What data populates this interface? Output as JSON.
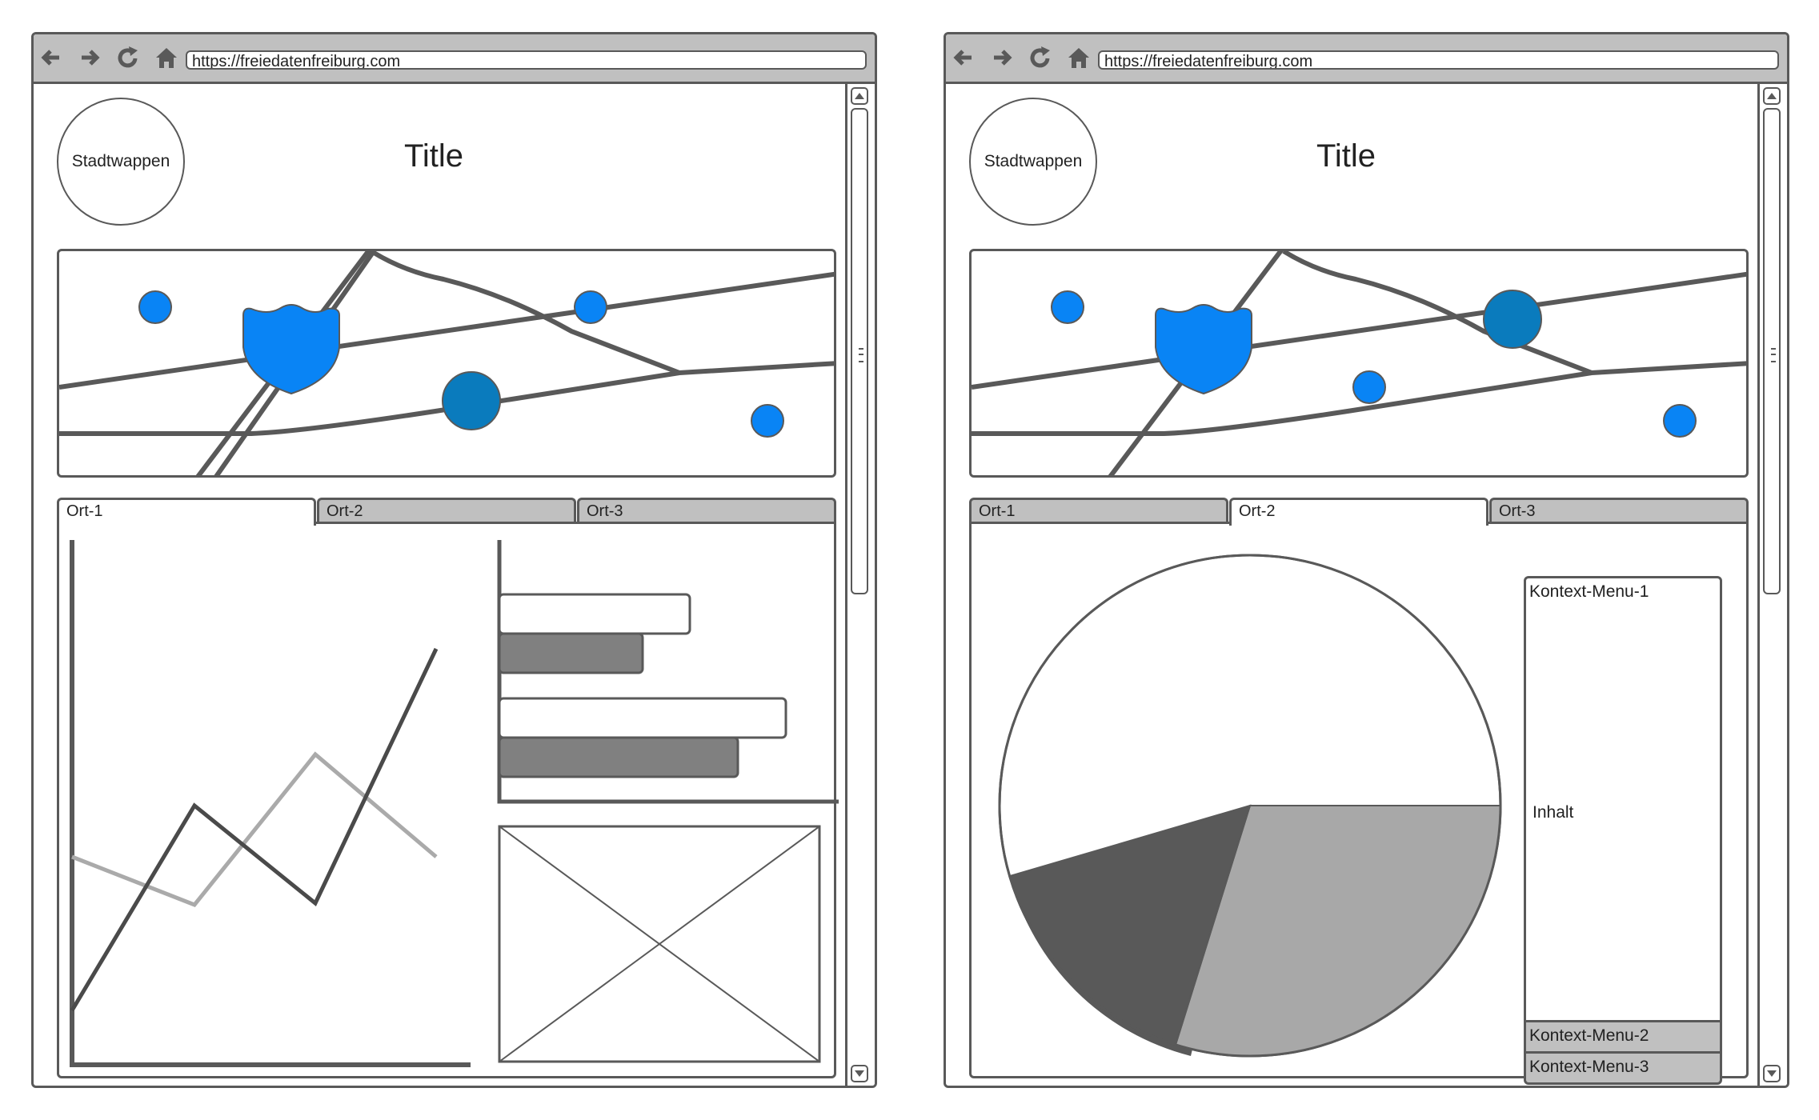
{
  "browser": {
    "url": "https://freiedatenfreiburg.com"
  },
  "page": {
    "crest_label": "Stadtwappen",
    "title": "Title"
  },
  "tabs": {
    "items": [
      "Ort-1",
      "Ort-2",
      "Ort-3"
    ]
  },
  "context_menu": {
    "item1": "Kontext-Menu-1",
    "content": "Inhalt",
    "item2": "Kontext-Menu-2",
    "item3": "Kontext-Menu-3"
  },
  "colors": {
    "marker_blue": "#0984f5",
    "marker_dark_blue": "#0a7bbd",
    "outline": "#595959",
    "tab_gray": "#c0c0c0",
    "bar_dark": "#808080",
    "pie_dark": "#595959",
    "pie_mid": "#a8a8a8"
  },
  "icons": [
    "back-arrow-icon",
    "forward-arrow-icon",
    "reload-icon",
    "home-icon",
    "scroll-up-icon",
    "scroll-down-icon",
    "map-marker-icon",
    "shield-icon",
    "image-placeholder-icon"
  ],
  "views": [
    {
      "name": "view-ort-1",
      "active_tab": 0
    },
    {
      "name": "view-ort-2",
      "active_tab": 1
    }
  ]
}
